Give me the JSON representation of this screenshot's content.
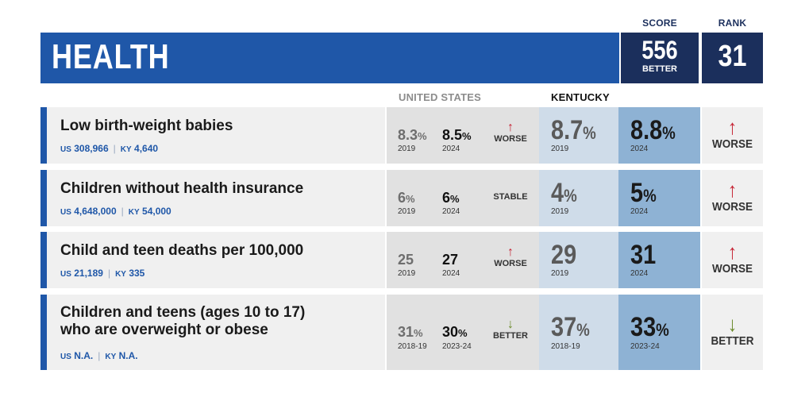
{
  "header": {
    "score_label": "SCORE",
    "rank_label": "RANK",
    "title": "HEALTH",
    "score": "556",
    "score_status": "BETTER",
    "rank": "31"
  },
  "columns": {
    "us": "UNITED STATES",
    "ky": "KENTUCKY"
  },
  "colors": {
    "banner_blue": "#1f57a8",
    "navy": "#1b2f5c",
    "worse_red": "#c62535",
    "better_green": "#6a8a2a"
  },
  "rows": [
    {
      "name": "Low birth-weight babies",
      "us_count_prefix": "US",
      "us_count": "308,966",
      "ky_count_prefix": "KY",
      "ky_count": "4,640",
      "us_old": "8.3",
      "us_old_unit": "%",
      "us_old_year": "2019",
      "us_new": "8.5",
      "us_new_unit": "%",
      "us_new_year": "2024",
      "us_trend": "WORSE",
      "us_arrow": "↑",
      "ky_old": "8.7",
      "ky_old_unit": "%",
      "ky_old_year": "2019",
      "ky_new": "8.8",
      "ky_new_unit": "%",
      "ky_new_year": "2024",
      "ky_trend": "WORSE",
      "ky_arrow": "↑"
    },
    {
      "name": "Children without health insurance",
      "us_count_prefix": "US",
      "us_count": "4,648,000",
      "ky_count_prefix": "KY",
      "ky_count": "54,000",
      "us_old": "6",
      "us_old_unit": "%",
      "us_old_year": "2019",
      "us_new": "6",
      "us_new_unit": "%",
      "us_new_year": "2024",
      "us_trend": "STABLE",
      "us_arrow": "",
      "ky_old": "4",
      "ky_old_unit": "%",
      "ky_old_year": "2019",
      "ky_new": "5",
      "ky_new_unit": "%",
      "ky_new_year": "2024",
      "ky_trend": "WORSE",
      "ky_arrow": "↑"
    },
    {
      "name": "Child and teen deaths per 100,000",
      "us_count_prefix": "US",
      "us_count": "21,189",
      "ky_count_prefix": "KY",
      "ky_count": "335",
      "us_old": "25",
      "us_old_unit": "",
      "us_old_year": "2019",
      "us_new": "27",
      "us_new_unit": "",
      "us_new_year": "2024",
      "us_trend": "WORSE",
      "us_arrow": "↑",
      "ky_old": "29",
      "ky_old_unit": "",
      "ky_old_year": "2019",
      "ky_new": "31",
      "ky_new_unit": "",
      "ky_new_year": "2024",
      "ky_trend": "WORSE",
      "ky_arrow": "↑"
    },
    {
      "name_line1": "Children and teens (ages 10 to 17)",
      "name_line2": "who are overweight or obese",
      "us_count_prefix": "US",
      "us_count": "N.A.",
      "ky_count_prefix": "KY",
      "ky_count": "N.A.",
      "us_old": "31",
      "us_old_unit": "%",
      "us_old_year": "2018-19",
      "us_new": "30",
      "us_new_unit": "%",
      "us_new_year": "2023-24",
      "us_trend": "BETTER",
      "us_arrow": "↓",
      "ky_old": "37",
      "ky_old_unit": "%",
      "ky_old_year": "2018-19",
      "ky_new": "33",
      "ky_new_unit": "%",
      "ky_new_year": "2023-24",
      "ky_trend": "BETTER",
      "ky_arrow": "↓"
    }
  ]
}
